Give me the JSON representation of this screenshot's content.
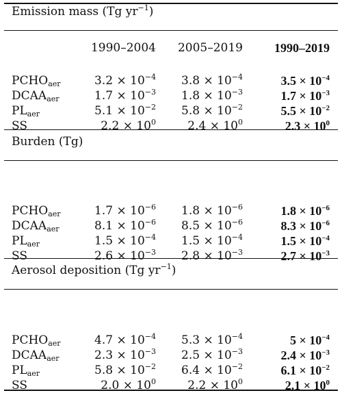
{
  "columns": [
    "1990–2004",
    "2005–2019",
    "1990–2019"
  ],
  "sections": [
    {
      "title": "Emission mass (Tg yr",
      "title_sup": "−1",
      "title_end": ")",
      "rows": [
        {
          "name": "PCHO",
          "sub": "aer",
          "cells": [
            {
              "m": "3.2",
              "e": "−4"
            },
            {
              "m": "3.8",
              "e": "−4"
            },
            {
              "m": "3.5",
              "e": "−4"
            }
          ]
        },
        {
          "name": "DCAA",
          "sub": "aer",
          "cells": [
            {
              "m": "1.7",
              "e": "−3"
            },
            {
              "m": "1.8",
              "e": "−3"
            },
            {
              "m": "1.7",
              "e": "−3"
            }
          ]
        },
        {
          "name": "PL",
          "sub": "aer",
          "cells": [
            {
              "m": "5.1",
              "e": "−2"
            },
            {
              "m": "5.8",
              "e": "−2"
            },
            {
              "m": "5.5",
              "e": "−2"
            }
          ]
        },
        {
          "name": "SS",
          "sub": "",
          "cells": [
            {
              "m": "2.2",
              "e": "0"
            },
            {
              "m": "2.4",
              "e": "0"
            },
            {
              "m": "2.3",
              "e": "0"
            }
          ]
        }
      ]
    },
    {
      "title": "Burden (Tg)",
      "title_sup": "",
      "title_end": "",
      "rows": [
        {
          "name": "PCHO",
          "sub": "aer",
          "cells": [
            {
              "m": "1.7",
              "e": "−6"
            },
            {
              "m": "1.8",
              "e": "−6"
            },
            {
              "m": "1.8",
              "e": "−6"
            }
          ]
        },
        {
          "name": "DCAA",
          "sub": "aer",
          "cells": [
            {
              "m": "8.1",
              "e": "−6"
            },
            {
              "m": "8.5",
              "e": "−6"
            },
            {
              "m": "8.3",
              "e": "−6"
            }
          ]
        },
        {
          "name": "PL",
          "sub": "aer",
          "cells": [
            {
              "m": "1.5",
              "e": "−4"
            },
            {
              "m": "1.5",
              "e": "−4"
            },
            {
              "m": "1.5",
              "e": "−4"
            }
          ]
        },
        {
          "name": "SS",
          "sub": "",
          "cells": [
            {
              "m": "2.6",
              "e": "−3"
            },
            {
              "m": "2.8",
              "e": "−3"
            },
            {
              "m": "2.7",
              "e": "−3"
            }
          ]
        }
      ]
    },
    {
      "title": "Aerosol deposition (Tg yr",
      "title_sup": "−1",
      "title_end": ")",
      "rows": [
        {
          "name": "PCHO",
          "sub": "aer",
          "cells": [
            {
              "m": "4.7",
              "e": "−4"
            },
            {
              "m": "5.3",
              "e": "−4"
            },
            {
              "m": "5",
              "e": "−4"
            }
          ]
        },
        {
          "name": "DCAA",
          "sub": "aer",
          "cells": [
            {
              "m": "2.3",
              "e": "−3"
            },
            {
              "m": "2.5",
              "e": "−3"
            },
            {
              "m": "2.4",
              "e": "−3"
            }
          ]
        },
        {
          "name": "PL",
          "sub": "aer",
          "cells": [
            {
              "m": "5.8",
              "e": "−2"
            },
            {
              "m": "6.4",
              "e": "−2"
            },
            {
              "m": "6.1",
              "e": "−2"
            }
          ]
        },
        {
          "name": "SS",
          "sub": "",
          "cells": [
            {
              "m": "2.0",
              "e": "0"
            },
            {
              "m": "2.2",
              "e": "0"
            },
            {
              "m": "2.1",
              "e": "0"
            }
          ]
        }
      ]
    }
  ]
}
